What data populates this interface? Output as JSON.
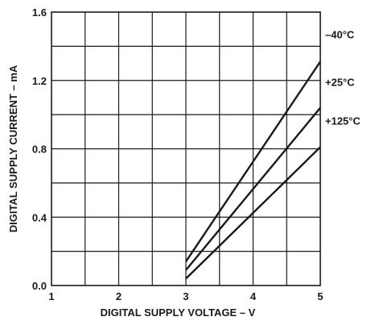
{
  "chart_data": {
    "type": "line",
    "title": "",
    "xlabel": "DIGITAL SUPPLY VOLTAGE – V",
    "ylabel": "DIGITAL SUPPLY CURRENT – mA",
    "xlim": [
      1,
      5
    ],
    "ylim": [
      0,
      1.6
    ],
    "x_ticks": [
      1,
      1.5,
      2,
      2.5,
      3,
      3.5,
      4,
      4.5,
      5
    ],
    "y_ticks": [
      0,
      0.2,
      0.4,
      0.6,
      0.8,
      1.0,
      1.2,
      1.4,
      1.6
    ],
    "x_tick_labels": [
      {
        "value": 1,
        "label": "1"
      },
      {
        "value": 2,
        "label": "2"
      },
      {
        "value": 3,
        "label": "3"
      },
      {
        "value": 4,
        "label": "4"
      },
      {
        "value": 5,
        "label": "5"
      }
    ],
    "y_tick_labels": [
      {
        "value": 0,
        "label": "0.0"
      },
      {
        "value": 0.4,
        "label": "0.4"
      },
      {
        "value": 0.8,
        "label": "0.8"
      },
      {
        "value": 1.2,
        "label": "1.2"
      },
      {
        "value": 1.6,
        "label": "1.6"
      }
    ],
    "grid": true,
    "series": [
      {
        "name": "–40°C",
        "x": [
          3,
          5
        ],
        "y": [
          0.14,
          1.31
        ]
      },
      {
        "name": "+25°C",
        "x": [
          3,
          5
        ],
        "y": [
          0.09,
          1.04
        ]
      },
      {
        "name": "+125°C",
        "x": [
          3,
          5
        ],
        "y": [
          0.04,
          0.81
        ]
      }
    ],
    "line_color": "#1a1a1a"
  }
}
